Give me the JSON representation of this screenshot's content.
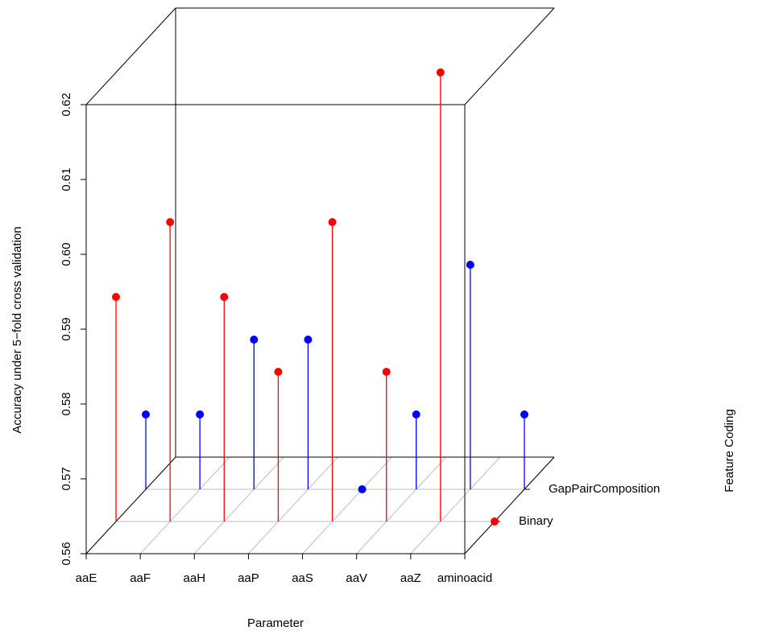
{
  "chart_data": {
    "type": "scatter3d",
    "xlabel": "Parameter",
    "ylabel": "Accuracy under 5−fold cross validation",
    "zlabel": "Feature Coding",
    "categories": [
      "aaE",
      "aaF",
      "aaH",
      "aaP",
      "aaS",
      "aaV",
      "aaZ",
      "aminoacid"
    ],
    "series": [
      {
        "name": "Binary",
        "color": "#ff0000",
        "values": [
          0.59,
          0.6,
          0.59,
          0.58,
          0.6,
          0.58,
          0.62,
          0.56
        ]
      },
      {
        "name": "GapPairComposition",
        "color": "#0000ff",
        "values": [
          0.57,
          0.57,
          0.58,
          0.58,
          0.56,
          0.57,
          0.59,
          0.57
        ]
      }
    ],
    "ylim": [
      0.56,
      0.62
    ],
    "yticks": [
      0.56,
      0.57,
      0.58,
      0.59,
      {
        "value": 0.6,
        "label": "0.60"
      },
      0.61,
      0.62
    ],
    "grid": true
  }
}
